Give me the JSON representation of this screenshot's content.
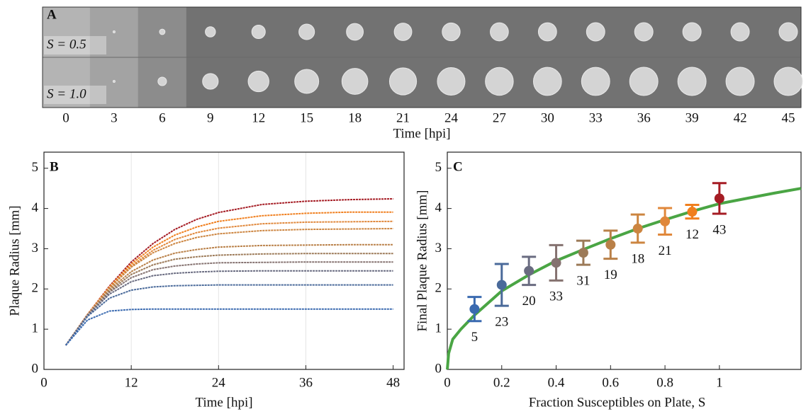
{
  "panel_a": {
    "label": "A",
    "rows": [
      "S = 0.5",
      "S = 1.0"
    ],
    "row_colors": [
      "#a0825a",
      "#b01c24"
    ],
    "times": [
      0,
      3,
      6,
      9,
      12,
      15,
      18,
      21,
      24,
      27,
      30,
      33,
      36,
      39,
      42,
      45
    ],
    "xlabel": "Time [hpi]"
  },
  "chart_data": [
    {
      "type": "line",
      "label": "B",
      "xlabel": "Time [hpi]",
      "ylabel": "Plaque Radius [mm]",
      "xlim": [
        0,
        49.5
      ],
      "ylim": [
        0,
        5.4
      ],
      "xticks": [
        0,
        12,
        24,
        36,
        48
      ],
      "yticks": [
        0,
        1,
        2,
        3,
        4,
        5
      ],
      "grid": true,
      "x": [
        3,
        6,
        9,
        12,
        15,
        18,
        21,
        24,
        30,
        36,
        42,
        48
      ],
      "series": [
        {
          "color": "#a51c24",
          "values": [
            0.6,
            1.37,
            2.07,
            2.67,
            3.13,
            3.48,
            3.73,
            3.9,
            4.1,
            4.18,
            4.22,
            4.24
          ]
        },
        {
          "color": "#f07f1e",
          "values": [
            0.6,
            1.37,
            2.05,
            2.62,
            3.04,
            3.34,
            3.54,
            3.68,
            3.82,
            3.88,
            3.91,
            3.91
          ]
        },
        {
          "color": "#e0873a",
          "values": [
            0.6,
            1.36,
            2.04,
            2.57,
            2.96,
            3.23,
            3.4,
            3.51,
            3.62,
            3.66,
            3.67,
            3.68
          ]
        },
        {
          "color": "#cc8540",
          "values": [
            0.6,
            1.36,
            2.02,
            2.54,
            2.9,
            3.13,
            3.28,
            3.37,
            3.45,
            3.48,
            3.49,
            3.5
          ]
        },
        {
          "color": "#b98048",
          "values": [
            0.6,
            1.36,
            1.99,
            2.43,
            2.72,
            2.89,
            2.98,
            3.04,
            3.08,
            3.09,
            3.1,
            3.1
          ]
        },
        {
          "color": "#9c7a58",
          "values": [
            0.6,
            1.35,
            1.95,
            2.36,
            2.6,
            2.74,
            2.8,
            2.84,
            2.87,
            2.88,
            2.88,
            2.88
          ]
        },
        {
          "color": "#857270",
          "values": [
            0.6,
            1.35,
            1.92,
            2.28,
            2.48,
            2.57,
            2.62,
            2.65,
            2.66,
            2.67,
            2.67,
            2.67
          ]
        },
        {
          "color": "#696b80",
          "values": [
            0.6,
            1.34,
            1.87,
            2.18,
            2.33,
            2.39,
            2.42,
            2.44,
            2.45,
            2.45,
            2.45,
            2.45
          ]
        },
        {
          "color": "#4a6a9a",
          "values": [
            0.6,
            1.32,
            1.77,
            1.97,
            2.05,
            2.08,
            2.09,
            2.1,
            2.1,
            2.1,
            2.1,
            2.1
          ]
        },
        {
          "color": "#3a6ab0",
          "values": [
            0.6,
            1.23,
            1.45,
            1.49,
            1.5,
            1.5,
            1.5,
            1.5,
            1.5,
            1.5,
            1.5,
            1.5
          ]
        }
      ]
    },
    {
      "type": "errorbar",
      "label": "C",
      "xlabel": "Fraction Susceptibles on Plate, S",
      "ylabel": "Final Plaque Radius [mm]",
      "xlim": [
        0,
        1.3
      ],
      "ylim": [
        0,
        5.4
      ],
      "xticks": [
        0,
        0.2,
        0.4,
        0.6,
        0.8,
        1
      ],
      "yticks": [
        0,
        1,
        2,
        3,
        4,
        5
      ],
      "x": [
        0.1,
        0.2,
        0.3,
        0.4,
        0.5,
        0.6,
        0.7,
        0.8,
        0.9,
        1
      ],
      "values": [
        1.5,
        2.1,
        2.45,
        2.65,
        2.9,
        3.1,
        3.5,
        3.68,
        3.92,
        4.25
      ],
      "errors": [
        0.3,
        0.52,
        0.35,
        0.44,
        0.3,
        0.35,
        0.35,
        0.33,
        0.17,
        0.38
      ],
      "colors": [
        "#3a6ab0",
        "#4a6a9a",
        "#696b80",
        "#857270",
        "#9c7a58",
        "#b98048",
        "#cc8540",
        "#e0873a",
        "#f07f1e",
        "#a51c24"
      ],
      "counts": [
        5,
        23,
        20,
        33,
        31,
        19,
        18,
        21,
        12,
        43
      ],
      "count_color": "#a8a8a8",
      "fit": {
        "color": "#4aa544",
        "x": [
          0,
          0.005,
          0.02,
          0.05,
          0.1,
          0.2,
          0.3,
          0.4,
          0.5,
          0.6,
          0.7,
          0.8,
          0.9,
          1,
          1.1,
          1.2,
          1.3
        ],
        "values": [
          0,
          0.4,
          0.75,
          1.0,
          1.35,
          1.95,
          2.35,
          2.7,
          2.98,
          3.25,
          3.5,
          3.72,
          3.93,
          4.12,
          4.25,
          4.38,
          4.5
        ]
      }
    }
  ]
}
